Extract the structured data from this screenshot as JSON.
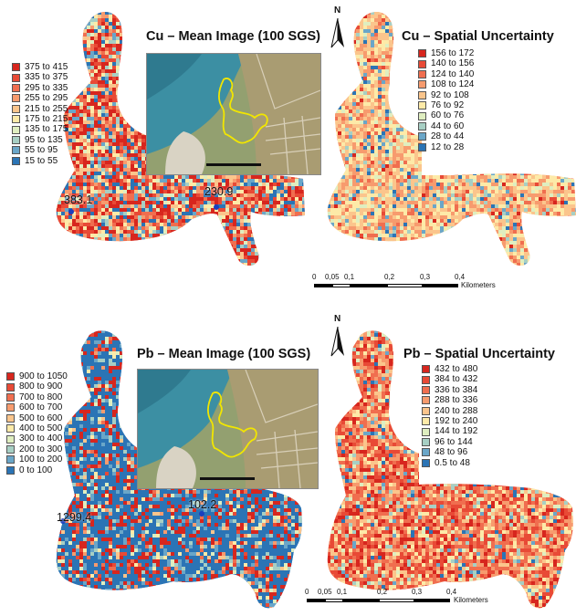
{
  "panels": [
    {
      "id": "cu-mean",
      "title": "Cu – Mean Image (100 SGS)",
      "legend": [
        {
          "label": "375 to 415",
          "color": "#d7261e"
        },
        {
          "label": "335 to 375",
          "color": "#e84a36"
        },
        {
          "label": "295 to 335",
          "color": "#f06e4f"
        },
        {
          "label": "255 to 295",
          "color": "#f79b6e"
        },
        {
          "label": "215 to 255",
          "color": "#fbc58c"
        },
        {
          "label": "175 to 215",
          "color": "#fdeaa8"
        },
        {
          "label": "135 to 175",
          "color": "#dfeec0"
        },
        {
          "label": "95 to 135",
          "color": "#a7cfc4"
        },
        {
          "label": "55 to 95",
          "color": "#6aa6c8"
        },
        {
          "label": "15 to 55",
          "color": "#2b74b5"
        }
      ],
      "points": [
        {
          "label": "383.1"
        },
        {
          "label": "230.9"
        }
      ]
    },
    {
      "id": "cu-unc",
      "title": "Cu – Spatial Uncertainty",
      "legend": [
        {
          "label": "156 to 172",
          "color": "#d7261e"
        },
        {
          "label": "140 to 156",
          "color": "#e84a36"
        },
        {
          "label": "124 to 140",
          "color": "#f06e4f"
        },
        {
          "label": "108 to 124",
          "color": "#f79b6e"
        },
        {
          "label": "92 to 108",
          "color": "#fbc58c"
        },
        {
          "label": "76 to 92",
          "color": "#fdeaa8"
        },
        {
          "label": "60 to 76",
          "color": "#dfeec0"
        },
        {
          "label": "44 to 60",
          "color": "#a7cfc4"
        },
        {
          "label": "28 to 44",
          "color": "#6aa6c8"
        },
        {
          "label": "12 to 28",
          "color": "#2b74b5"
        }
      ]
    },
    {
      "id": "pb-mean",
      "title": "Pb – Mean Image (100 SGS)",
      "legend": [
        {
          "label": "900 to 1050",
          "color": "#d7261e"
        },
        {
          "label": "800 to 900",
          "color": "#e84a36"
        },
        {
          "label": "700 to 800",
          "color": "#f06e4f"
        },
        {
          "label": "600 to 700",
          "color": "#f79b6e"
        },
        {
          "label": "500 to 600",
          "color": "#fbc58c"
        },
        {
          "label": "400 to 500",
          "color": "#fdeaa8"
        },
        {
          "label": "300 to 400",
          "color": "#dfeec0"
        },
        {
          "label": "200 to 300",
          "color": "#a7cfc4"
        },
        {
          "label": "100 to 200",
          "color": "#6aa6c8"
        },
        {
          "label": "0 to 100",
          "color": "#2b74b5"
        }
      ],
      "points": [
        {
          "label": "1299.4"
        },
        {
          "label": "102.2"
        }
      ]
    },
    {
      "id": "pb-unc",
      "title": "Pb – Spatial Uncertainty",
      "legend": [
        {
          "label": "432 to 480",
          "color": "#d7261e"
        },
        {
          "label": "384 to 432",
          "color": "#e84a36"
        },
        {
          "label": "336 to 384",
          "color": "#f06e4f"
        },
        {
          "label": "288 to 336",
          "color": "#f79b6e"
        },
        {
          "label": "240 to 288",
          "color": "#fbc58c"
        },
        {
          "label": "192 to 240",
          "color": "#fdeaa8"
        },
        {
          "label": "144 to 192",
          "color": "#dfeec0"
        },
        {
          "label": "96 to 144",
          "color": "#a7cfc4"
        },
        {
          "label": "48 to 96",
          "color": "#6aa6c8"
        },
        {
          "label": "0.5 to 48",
          "color": "#2b74b5"
        }
      ]
    }
  ],
  "north_label": "N",
  "scale_bar": {
    "ticks": [
      "0",
      "0,05",
      "0,1",
      "0,2",
      "0,3",
      "0,4"
    ],
    "unit": "Kilometers"
  },
  "colors": {
    "boundary": "#f2e600",
    "water": "#3c8fa3",
    "land": "#8f9a6a"
  }
}
